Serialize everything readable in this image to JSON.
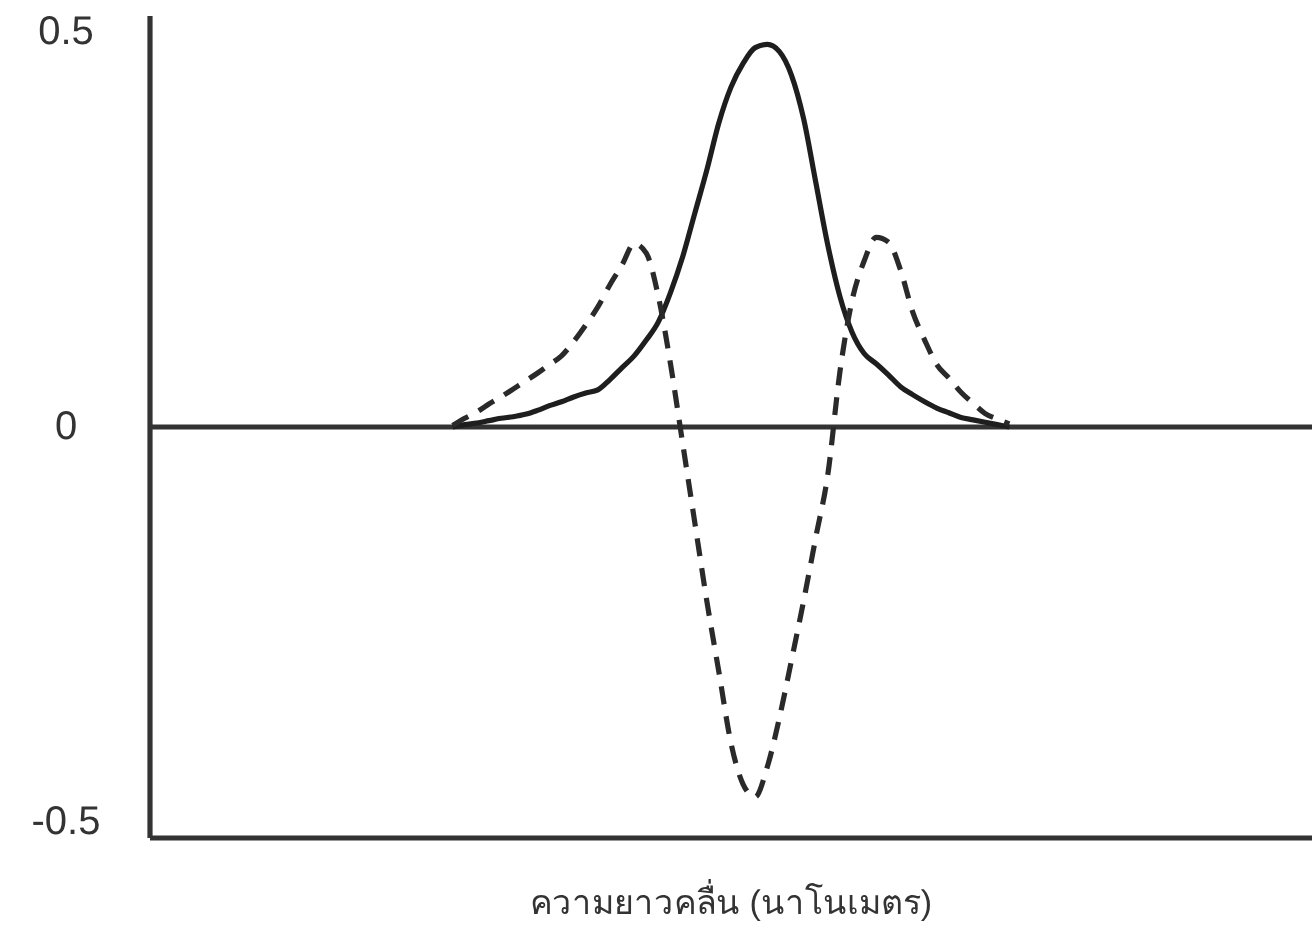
{
  "chart_data": {
    "type": "line",
    "xlabel": "ความยาวคลื่น (นาโนเมตร)",
    "categories": [
      null,
      null,
      null,
      null,
      null,
      null,
      null,
      null,
      null,
      null,
      null,
      null,
      null,
      null,
      null,
      null,
      null,
      null,
      null,
      null,
      null,
      null,
      null,
      null,
      null,
      null,
      null,
      null,
      null,
      null,
      null,
      null,
      null,
      null,
      null,
      null,
      null,
      null,
      null,
      null,
      null,
      null,
      null,
      null,
      null,
      null,
      null,
      null,
      null,
      null,
      null,
      null,
      null,
      null,
      null,
      null,
      null,
      null,
      null,
      null,
      null,
      null,
      null,
      null,
      null,
      null,
      null,
      null,
      null,
      null,
      null,
      null,
      null,
      null,
      null,
      null,
      null,
      null,
      null,
      null,
      null,
      null,
      null,
      null,
      null,
      null,
      null,
      null,
      null,
      null,
      null,
      null,
      null,
      null,
      null,
      null,
      null
    ],
    "series": [
      {
        "color": "#1e1e1e",
        "line_style": "solid",
        "values": [
          null,
          null,
          null,
          null,
          null,
          null,
          null,
          null,
          null,
          null,
          null,
          null,
          null,
          null,
          null,
          null,
          null,
          null,
          null,
          null,
          null,
          null,
          null,
          null,
          null,
          0,
          0.003,
          0.005,
          0.008,
          0.011,
          0.013,
          0.016,
          0.021,
          0.027,
          0.032,
          0.038,
          0.043,
          0.047,
          0.06,
          0.075,
          0.09,
          0.11,
          0.133,
          0.17,
          0.215,
          0.27,
          0.325,
          0.385,
          0.43,
          0.46,
          0.48,
          0.484,
          0.475,
          0.445,
          0.39,
          0.31,
          0.23,
          0.165,
          0.12,
          0.093,
          0.08,
          0.066,
          0.051,
          0.041,
          0.032,
          0.024,
          0.018,
          0.012,
          0.009,
          0.006,
          0.003,
          0,
          null,
          null,
          null,
          null,
          null,
          null,
          null,
          null,
          null,
          null,
          null,
          null,
          null,
          null,
          null,
          null,
          null,
          null,
          null,
          null,
          null,
          null,
          null,
          null,
          null
        ]
      },
      {
        "color": "#2a2a2a",
        "line_style": "dashed",
        "values": [
          null,
          null,
          null,
          null,
          null,
          null,
          null,
          null,
          null,
          null,
          null,
          null,
          null,
          null,
          null,
          null,
          null,
          null,
          null,
          null,
          null,
          null,
          null,
          null,
          null,
          0.002,
          0.011,
          0.019,
          0.029,
          0.038,
          0.048,
          0.058,
          0.068,
          0.079,
          0.09,
          0.108,
          0.129,
          0.152,
          0.18,
          0.205,
          0.232,
          0.22,
          0.165,
          0.08,
          -0.02,
          -0.12,
          -0.22,
          -0.31,
          -0.4,
          -0.452,
          -0.468,
          -0.43,
          -0.368,
          -0.295,
          -0.22,
          -0.14,
          -0.06,
          0.07,
          0.16,
          0.21,
          0.24,
          0.234,
          0.199,
          0.146,
          0.11,
          0.079,
          0.062,
          0.044,
          0.03,
          0.017,
          0.01,
          0.004,
          null,
          null,
          null,
          null,
          null,
          null,
          null,
          null,
          null,
          null,
          null,
          null,
          null,
          null,
          null,
          null,
          null,
          null,
          null,
          null,
          null,
          null,
          null,
          null,
          null
        ]
      }
    ],
    "ylim": [
      -0.52,
      0.52
    ],
    "yticks": [
      -0.5,
      0,
      0.5
    ],
    "ref_lines": [
      {
        "axis": "y",
        "value": 0,
        "color": "#333333"
      }
    ],
    "marker": "none",
    "tick_labels": "y"
  }
}
